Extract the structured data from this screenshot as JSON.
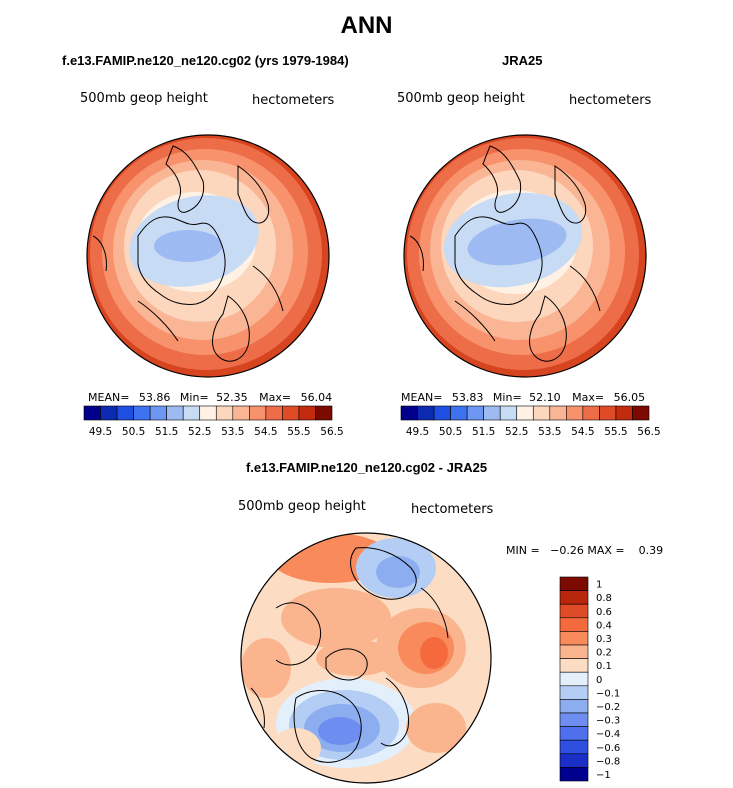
{
  "main_title": "ANN",
  "panels": [
    {
      "title": "f.e13.FAMIP.ne120_ne120.cg02 (yrs 1979-1984)",
      "field_label": "500mb geop height",
      "units_label": "hectometers",
      "stats": {
        "mean_label": "MEAN=",
        "mean": "53.86",
        "min_label": "Min=",
        "min": "52.35",
        "max_label": "Max=",
        "max": "56.04"
      }
    },
    {
      "title": "JRA25",
      "field_label": "500mb geop height",
      "units_label": "hectometers",
      "stats": {
        "mean_label": "MEAN=",
        "mean": "53.83",
        "min_label": "Min=",
        "min": "52.10",
        "max_label": "Max=",
        "max": "56.05"
      }
    }
  ],
  "diff_panel": {
    "title": "f.e13.FAMIP.ne120_ne120.cg02 - JRA25",
    "field_label": "500mb geop height",
    "units_label": "hectometers",
    "minmax_text": "MIN =   −0.26 MAX =    0.39"
  },
  "colorbar_main": {
    "colors": [
      "#00008c",
      "#0d2bb2",
      "#1f4fe0",
      "#3d73f0",
      "#6d97f2",
      "#9dbaf2",
      "#c8dbf5",
      "#fff2e5",
      "#fcd6bd",
      "#fab594",
      "#f7926c",
      "#ed6d48",
      "#e04b27",
      "#c22b0e",
      "#7d0a00"
    ],
    "labels": [
      "49.5",
      "50.5",
      "51.5",
      "52.5",
      "53.5",
      "54.5",
      "55.5",
      "56.5"
    ]
  },
  "colorbar_diff": {
    "colors": [
      "#7d0a00",
      "#b8260b",
      "#e04b27",
      "#f56a3c",
      "#f88a5c",
      "#fab58f",
      "#fcdcc3",
      "#e3effb",
      "#b3cdf4",
      "#8caef0",
      "#6d8ef0",
      "#4f70ec",
      "#2f4fe0",
      "#1a2fc8",
      "#000090"
    ],
    "labels": [
      "1",
      "0.8",
      "0.6",
      "0.4",
      "0.3",
      "0.2",
      "0.1",
      "0",
      "−0.1",
      "−0.2",
      "−0.3",
      "−0.4",
      "−0.6",
      "−0.8",
      "−1"
    ]
  },
  "chart_data": [
    {
      "type": "heatmap",
      "panel": "f.e13.FAMIP.ne120_ne120.cg02 (yrs 1979-1984)",
      "variable": "500mb geop height",
      "units": "hectometers",
      "projection": "polar stereographic, Northern Hemisphere",
      "mean": 53.86,
      "min": 52.35,
      "max": 56.04,
      "colorbar_levels": [
        49.5,
        50.5,
        51.5,
        52.5,
        53.5,
        54.5,
        55.5,
        56.5
      ]
    },
    {
      "type": "heatmap",
      "panel": "JRA25",
      "variable": "500mb geop height",
      "units": "hectometers",
      "projection": "polar stereographic, Northern Hemisphere",
      "mean": 53.83,
      "min": 52.1,
      "max": 56.05,
      "colorbar_levels": [
        49.5,
        50.5,
        51.5,
        52.5,
        53.5,
        54.5,
        55.5,
        56.5
      ]
    },
    {
      "type": "heatmap",
      "panel": "f.e13.FAMIP.ne120_ne120.cg02 - JRA25",
      "variable": "500mb geop height",
      "units": "hectometers",
      "min": -0.26,
      "max": 0.39,
      "colorbar_levels": [
        1,
        0.8,
        0.6,
        0.4,
        0.3,
        0.2,
        0.1,
        0,
        -0.1,
        -0.2,
        -0.3,
        -0.4,
        -0.6,
        -0.8,
        -1
      ]
    }
  ]
}
